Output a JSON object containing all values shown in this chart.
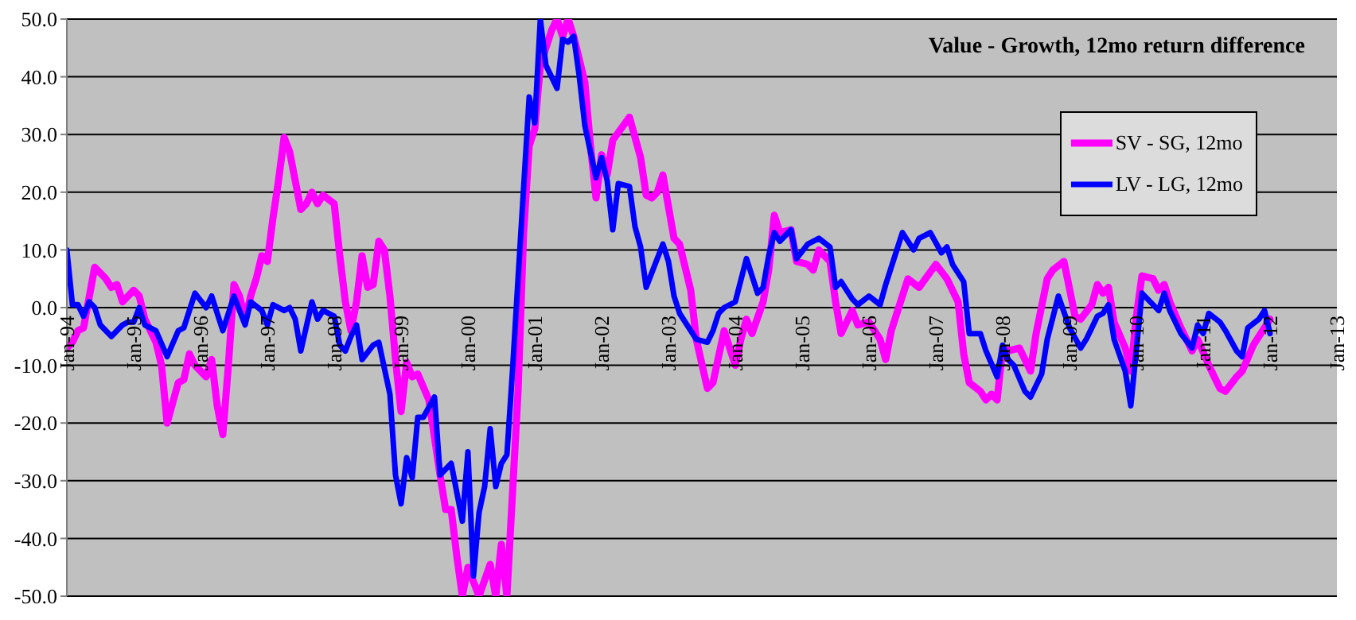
{
  "chart_data": {
    "type": "line",
    "title": "Value - Growth, 12mo return difference",
    "xlim": [
      "1994-01",
      "2013-01"
    ],
    "xticks": [
      {
        "value": "1994-01",
        "label": "Jan-94"
      },
      {
        "value": "1995-01",
        "label": "Jan-95"
      },
      {
        "value": "1996-01",
        "label": "Jan-96"
      },
      {
        "value": "1997-01",
        "label": "Jan-97"
      },
      {
        "value": "1998-01",
        "label": "Jan-98"
      },
      {
        "value": "1999-01",
        "label": "Jan-99"
      },
      {
        "value": "2000-01",
        "label": "Jan-00"
      },
      {
        "value": "2001-01",
        "label": "Jan-01"
      },
      {
        "value": "2002-01",
        "label": "Jan-02"
      },
      {
        "value": "2003-01",
        "label": "Jan-03"
      },
      {
        "value": "2004-01",
        "label": "Jan-04"
      },
      {
        "value": "2005-01",
        "label": "Jan-05"
      },
      {
        "value": "2006-01",
        "label": "Jan-06"
      },
      {
        "value": "2007-01",
        "label": "Jan-07"
      },
      {
        "value": "2008-01",
        "label": "Jan-08"
      },
      {
        "value": "2009-01",
        "label": "Jan-09"
      },
      {
        "value": "2010-01",
        "label": "Jan-10"
      },
      {
        "value": "2011-01",
        "label": "Jan-11"
      },
      {
        "value": "2012-01",
        "label": "Jan-12"
      },
      {
        "value": "2013-01",
        "label": "Jan-13"
      }
    ],
    "ylim": [
      -50,
      50
    ],
    "yticks": [
      {
        "value": -50,
        "label": "-50.0"
      },
      {
        "value": -40,
        "label": "-40.0"
      },
      {
        "value": -30,
        "label": "-30.0"
      },
      {
        "value": -20,
        "label": "-20.0"
      },
      {
        "value": -10,
        "label": "-10.0"
      },
      {
        "value": 0,
        "label": "0.0"
      },
      {
        "value": 10,
        "label": "10.0"
      },
      {
        "value": 20,
        "label": "20.0"
      },
      {
        "value": 30,
        "label": "30.0"
      },
      {
        "value": 40,
        "label": "40.0"
      },
      {
        "value": 50,
        "label": "50.0"
      }
    ],
    "grid": "y",
    "legend": "top right",
    "series": [
      {
        "name": "SV - SG, 12mo",
        "color": "#ff00ff",
        "x": [
          "1994-01",
          "1994-02",
          "1994-03",
          "1994-04",
          "1994-06",
          "1994-08",
          "1994-09",
          "1994-10",
          "1994-11",
          "1995-01",
          "1995-02",
          "1995-03",
          "1995-05",
          "1995-06",
          "1995-07",
          "1995-09",
          "1995-10",
          "1995-11",
          "1995-12",
          "1996-01",
          "1996-02",
          "1996-03",
          "1996-04",
          "1996-05",
          "1996-06",
          "1996-07",
          "1996-08",
          "1996-09",
          "1996-10",
          "1996-11",
          "1996-12",
          "1997-01",
          "1997-02",
          "1997-03",
          "1997-04",
          "1997-05",
          "1997-07",
          "1997-08",
          "1997-09",
          "1997-10",
          "1997-11",
          "1998-01",
          "1998-02",
          "1998-03",
          "1998-04",
          "1998-05",
          "1998-06",
          "1998-07",
          "1998-08",
          "1998-09",
          "1998-10",
          "1998-11",
          "1998-12",
          "1999-01",
          "1999-02",
          "1999-03",
          "1999-04",
          "1999-06",
          "1999-08",
          "1999-09",
          "1999-10",
          "1999-11",
          "1999-12",
          "2000-01",
          "2000-03",
          "2000-05",
          "2000-06",
          "2000-07",
          "2000-08",
          "2000-10",
          "2000-11",
          "2000-12",
          "2001-01",
          "2001-02",
          "2001-04",
          "2001-05",
          "2001-06",
          "2001-07",
          "2001-08",
          "2001-10",
          "2001-11",
          "2001-12",
          "2002-01",
          "2002-02",
          "2002-03",
          "2002-06",
          "2002-08",
          "2002-09",
          "2002-10",
          "2002-11",
          "2002-12",
          "2003-02",
          "2003-03",
          "2003-05",
          "2003-06",
          "2003-08",
          "2003-09",
          "2003-11",
          "2004-01",
          "2004-02",
          "2004-03",
          "2004-04",
          "2004-06",
          "2004-07",
          "2004-08",
          "2004-09",
          "2004-11",
          "2004-12",
          "2005-02",
          "2005-03",
          "2005-04",
          "2005-06",
          "2005-07",
          "2005-08",
          "2005-10",
          "2005-11",
          "2006-01",
          "2006-03",
          "2006-04",
          "2006-05",
          "2006-07",
          "2006-08",
          "2006-10",
          "2007-01",
          "2007-03",
          "2007-05",
          "2007-06",
          "2007-07",
          "2007-09",
          "2007-10",
          "2007-11",
          "2007-12",
          "2008-01",
          "2008-02",
          "2008-04",
          "2008-06",
          "2008-07",
          "2008-09",
          "2008-10",
          "2008-12",
          "2009-02",
          "2009-03",
          "2009-05",
          "2009-06",
          "2009-07",
          "2009-08",
          "2009-09",
          "2009-11",
          "2009-12",
          "2010-01",
          "2010-02",
          "2010-04",
          "2010-05",
          "2010-06",
          "2010-07",
          "2010-09",
          "2010-11",
          "2010-12",
          "2011-02",
          "2011-04",
          "2011-05",
          "2011-07",
          "2011-08",
          "2011-10",
          "2011-11",
          "2012-01"
        ],
        "values": [
          -7,
          -6,
          -4,
          -3.5,
          7,
          5,
          3.5,
          4,
          1,
          3,
          2,
          -2,
          -6,
          -10,
          -20,
          -13,
          -12.5,
          -8,
          -10,
          -11,
          -12,
          -9,
          -17,
          -22,
          -10,
          4,
          2,
          -2,
          2,
          5,
          9,
          8,
          15.5,
          22,
          29.5,
          27,
          17,
          18,
          20,
          18,
          19.5,
          18,
          9,
          1,
          -4,
          1,
          9,
          3.5,
          4,
          11.5,
          10,
          2,
          -9,
          -18,
          -9.5,
          -12,
          -11.5,
          -16,
          -29,
          -35,
          -35,
          -43,
          -50,
          -45,
          -50,
          -44.5,
          -50,
          -41,
          -50,
          -14.5,
          13,
          28,
          31,
          42,
          48,
          50,
          47,
          50,
          47,
          39,
          28,
          19,
          26.5,
          23,
          29,
          33,
          26,
          19.5,
          19,
          20,
          23,
          12,
          11,
          3,
          -5.5,
          -14,
          -13,
          -4,
          -10,
          -5.5,
          -2,
          -4.5,
          1,
          6.5,
          16,
          13,
          13.5,
          8,
          7.5,
          6.5,
          10,
          8,
          1,
          -4.5,
          -0.5,
          -3,
          -2.5,
          -5.5,
          -9,
          -4,
          2,
          5,
          3.5,
          7.5,
          5,
          1,
          -8,
          -13,
          -14.5,
          -16,
          -15,
          -16,
          -7,
          -7.5,
          -7,
          -11,
          -4.5,
          5,
          6.5,
          8,
          -1.5,
          -2,
          0.5,
          4,
          2.5,
          3.5,
          -2.5,
          -7,
          -11,
          -1.5,
          5.5,
          5,
          3,
          4,
          1,
          -3.5,
          -7.5,
          -5.5,
          -10,
          -14,
          -14.5,
          -12,
          -11,
          -6.5,
          -5,
          -2
        ]
      },
      {
        "name": "LV - LG, 12mo",
        "color": "#0000ff",
        "x": [
          "1994-01",
          "1994-02",
          "1994-03",
          "1994-04",
          "1994-05",
          "1994-06",
          "1994-07",
          "1994-09",
          "1994-11",
          "1994-12",
          "1995-01",
          "1995-02",
          "1995-03",
          "1995-05",
          "1995-07",
          "1995-09",
          "1995-10",
          "1995-12",
          "1996-02",
          "1996-03",
          "1996-05",
          "1996-07",
          "1996-09",
          "1996-10",
          "1996-12",
          "1997-01",
          "1997-02",
          "1997-04",
          "1997-05",
          "1997-06",
          "1997-07",
          "1997-09",
          "1997-10",
          "1997-11",
          "1998-01",
          "1998-02",
          "1998-03",
          "1998-04",
          "1998-05",
          "1998-06",
          "1998-08",
          "1998-09",
          "1998-11",
          "1998-12",
          "1999-01",
          "1999-02",
          "1999-03",
          "1999-04",
          "1999-05",
          "1999-07",
          "1999-08",
          "1999-10",
          "1999-12",
          "2000-01",
          "2000-02",
          "2000-03",
          "2000-04",
          "2000-05",
          "2000-06",
          "2000-07",
          "2000-08",
          "2000-09",
          "2000-10",
          "2000-12",
          "2001-01",
          "2001-02",
          "2001-03",
          "2001-05",
          "2001-06",
          "2001-07",
          "2001-08",
          "2001-09",
          "2001-10",
          "2001-12",
          "2002-01",
          "2002-02",
          "2002-03",
          "2002-04",
          "2002-06",
          "2002-07",
          "2002-08",
          "2002-09",
          "2002-11",
          "2002-12",
          "2003-01",
          "2003-02",
          "2003-03",
          "2003-06",
          "2003-08",
          "2003-09",
          "2003-10",
          "2003-11",
          "2004-01",
          "2004-03",
          "2004-05",
          "2004-06",
          "2004-07",
          "2004-08",
          "2004-09",
          "2004-11",
          "2004-12",
          "2005-02",
          "2005-04",
          "2005-06",
          "2005-07",
          "2005-08",
          "2005-10",
          "2005-11",
          "2006-01",
          "2006-03",
          "2006-04",
          "2006-05",
          "2006-07",
          "2006-09",
          "2006-10",
          "2006-12",
          "2007-02",
          "2007-03",
          "2007-04",
          "2007-06",
          "2007-07",
          "2007-09",
          "2007-10",
          "2007-12",
          "2008-01",
          "2008-02",
          "2008-03",
          "2008-05",
          "2008-06",
          "2008-08",
          "2008-09",
          "2008-11",
          "2009-01",
          "2009-03",
          "2009-04",
          "2009-06",
          "2009-07",
          "2009-08",
          "2009-09",
          "2009-11",
          "2009-12",
          "2010-02",
          "2010-03",
          "2010-05",
          "2010-06",
          "2010-07",
          "2010-09",
          "2010-11",
          "2010-12",
          "2011-01",
          "2011-02",
          "2011-04",
          "2011-05",
          "2011-07",
          "2011-08",
          "2011-09",
          "2011-11",
          "2011-12",
          "2012-01"
        ],
        "values": [
          10,
          0.5,
          0.5,
          -1.5,
          1,
          0,
          -3,
          -5,
          -3,
          -2.5,
          -2.5,
          0,
          -3,
          -4,
          -8.5,
          -4,
          -3.5,
          2.5,
          0,
          2,
          -4,
          2,
          -3,
          1,
          -0.5,
          -3,
          0.5,
          -0.5,
          0,
          -2,
          -7.5,
          1,
          -2,
          -0.5,
          -1.5,
          -6.5,
          -7.5,
          -5,
          -3,
          -9,
          -6.5,
          -6,
          -15,
          -29,
          -34,
          -26,
          -29.5,
          -19,
          -19,
          -15.5,
          -29,
          -27,
          -37,
          -25,
          -46.5,
          -35.5,
          -31,
          -21,
          -31,
          -27,
          -25.5,
          -11,
          5,
          36.5,
          32,
          50,
          42,
          38,
          46.5,
          46,
          47,
          40,
          31.5,
          22.5,
          26,
          22,
          13.5,
          21.5,
          21,
          14,
          10.5,
          3.5,
          8.5,
          11,
          8,
          2,
          -1,
          -5.5,
          -6,
          -4,
          -1,
          0,
          1,
          8.5,
          2.5,
          3.5,
          9,
          13,
          11.5,
          13.5,
          8.5,
          11,
          12,
          10.5,
          3.5,
          4.5,
          1.5,
          0.5,
          2,
          0.5,
          4,
          7,
          13,
          10,
          12,
          13,
          9.5,
          10.5,
          7.5,
          4.5,
          -4.5,
          -4.5,
          -7.5,
          -12,
          -6.5,
          -9,
          -10,
          -14.5,
          -15.5,
          -11.5,
          -5.5,
          2,
          -3.5,
          -7,
          -5.5,
          -1.5,
          -1,
          0.5,
          -5.5,
          -11,
          -17,
          2.5,
          1.5,
          -0.5,
          2.5,
          -0.5,
          -4.5,
          -7,
          -3,
          -4.5,
          -1,
          -2.5,
          -4,
          -7.5,
          -8.5,
          -3.5,
          -2,
          -0.5,
          -4.5
        ]
      }
    ]
  }
}
